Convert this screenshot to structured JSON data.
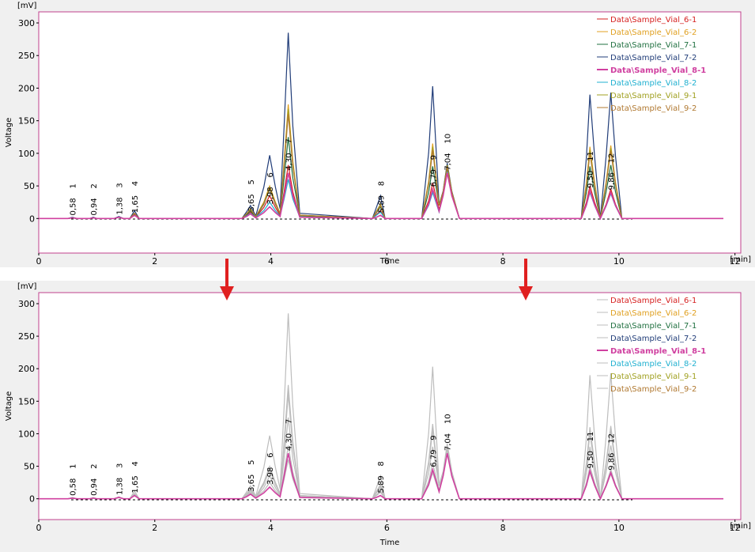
{
  "chart_data": [
    {
      "type": "line",
      "x_label": "Time",
      "x_unit": "[min]",
      "y_label": "Voltage",
      "y_unit": "[mV]",
      "xlim": [
        0,
        12.1
      ],
      "xticks": [
        0,
        2,
        4,
        6,
        8,
        10,
        12
      ],
      "ylim": [
        -53,
        317
      ],
      "yticks": [
        0,
        50,
        100,
        150,
        200,
        250,
        300
      ],
      "x": [
        0,
        0.5,
        0.58,
        0.66,
        0.88,
        0.94,
        1.0,
        1.3,
        1.38,
        1.46,
        1.57,
        1.65,
        1.73,
        3.5,
        3.58,
        3.65,
        3.74,
        3.88,
        3.98,
        4.08,
        4.16,
        4.23,
        4.3,
        4.38,
        4.5,
        5.75,
        5.82,
        5.89,
        5.97,
        6.6,
        6.72,
        6.79,
        6.9,
        6.97,
        7.04,
        7.12,
        7.25,
        9.35,
        9.44,
        9.5,
        9.58,
        9.68,
        9.78,
        9.86,
        9.94,
        10.05,
        11.8
      ],
      "series": [
        {
          "name": "Data\\Sample_Vial_6-1",
          "color": "#d62020",
          "values": [
            0,
            0,
            1,
            0,
            0,
            1,
            0,
            0,
            2,
            0,
            0,
            6,
            0,
            0,
            5,
            10,
            2,
            17,
            35,
            17,
            5,
            41,
            82,
            41,
            2,
            0,
            6,
            12,
            0,
            0,
            27,
            55,
            14,
            37,
            75,
            37,
            0,
            0,
            25,
            50,
            25,
            0,
            22,
            45,
            22,
            0,
            0
          ]
        },
        {
          "name": "Data\\Sample_Vial_6-2",
          "color": "#e0a020",
          "values": [
            0,
            0,
            1,
            0,
            0,
            1,
            0,
            0,
            2,
            0,
            0,
            8,
            0,
            0,
            7,
            14,
            3,
            25,
            50,
            25,
            8,
            88,
            175,
            88,
            5,
            0,
            10,
            20,
            0,
            0,
            57,
            115,
            20,
            40,
            80,
            40,
            0,
            0,
            55,
            110,
            55,
            0,
            56,
            112,
            56,
            0,
            0
          ]
        },
        {
          "name": "Data\\Sample_Vial_7-1",
          "color": "#207040",
          "values": [
            0,
            0,
            1,
            0,
            0,
            1,
            0,
            0,
            2,
            0,
            0,
            7,
            0,
            0,
            6,
            12,
            2,
            22,
            45,
            22,
            7,
            62,
            125,
            62,
            4,
            0,
            9,
            18,
            0,
            0,
            40,
            80,
            20,
            39,
            78,
            39,
            0,
            0,
            40,
            80,
            40,
            0,
            41,
            82,
            41,
            0,
            0
          ]
        },
        {
          "name": "Data\\Sample_Vial_7-2",
          "color": "#203c78",
          "values": [
            0,
            0,
            2,
            0,
            0,
            2,
            0,
            0,
            3,
            0,
            0,
            12,
            0,
            0,
            10,
            20,
            4,
            48,
            97,
            48,
            15,
            142,
            285,
            142,
            8,
            0,
            17,
            35,
            0,
            0,
            101,
            203,
            21,
            42,
            85,
            42,
            0,
            0,
            95,
            190,
            95,
            0,
            96,
            193,
            96,
            0,
            0
          ]
        },
        {
          "name": "Data\\Sample_Vial_8-1",
          "color": "#d040a0",
          "bold": true,
          "values": [
            0,
            0,
            1,
            0,
            0,
            1,
            0,
            0,
            2,
            0,
            0,
            5,
            0,
            0,
            3,
            7,
            1,
            9,
            18,
            9,
            3,
            35,
            70,
            35,
            2,
            0,
            2,
            5,
            0,
            0,
            22,
            45,
            11,
            35,
            70,
            35,
            0,
            0,
            21,
            43,
            21,
            0,
            20,
            40,
            20,
            0,
            0
          ]
        },
        {
          "name": "Data\\Sample_Vial_8-2",
          "color": "#20b0d0",
          "values": [
            0,
            0,
            1,
            0,
            0,
            1,
            0,
            0,
            2,
            0,
            0,
            5,
            0,
            0,
            4,
            8,
            2,
            12,
            25,
            12,
            4,
            30,
            60,
            30,
            2,
            0,
            5,
            10,
            0,
            0,
            20,
            40,
            10,
            36,
            72,
            36,
            0,
            0,
            20,
            40,
            20,
            0,
            19,
            38,
            19,
            0,
            0
          ]
        },
        {
          "name": "Data\\Sample_Vial_9-1",
          "color": "#a0a020",
          "values": [
            0,
            0,
            1,
            0,
            0,
            1,
            0,
            0,
            2,
            0,
            0,
            8,
            0,
            0,
            7,
            15,
            3,
            24,
            48,
            24,
            7,
            84,
            168,
            84,
            5,
            0,
            11,
            22,
            0,
            0,
            55,
            110,
            20,
            41,
            82,
            41,
            0,
            0,
            52,
            105,
            52,
            0,
            54,
            108,
            54,
            0,
            0
          ]
        },
        {
          "name": "Data\\Sample_Vial_9-2",
          "color": "#b07830",
          "values": [
            0,
            0,
            1,
            0,
            0,
            1,
            0,
            0,
            2,
            0,
            0,
            8,
            0,
            0,
            7,
            14,
            3,
            23,
            46,
            23,
            7,
            80,
            160,
            80,
            5,
            0,
            10,
            20,
            0,
            0,
            52,
            105,
            20,
            40,
            80,
            40,
            0,
            0,
            50,
            100,
            50,
            0,
            52,
            104,
            52,
            0,
            0
          ]
        }
      ],
      "peaks": [
        {
          "label": "1",
          "time": {
            "value": 0.58,
            "label": "0,58"
          }
        },
        {
          "label": "2",
          "time": {
            "value": 0.94,
            "label": "0,94"
          }
        },
        {
          "label": "3",
          "time": {
            "value": 1.38,
            "label": "1,38"
          }
        },
        {
          "label": "4",
          "time": {
            "value": 1.65,
            "label": "1,65"
          }
        },
        {
          "label": "5",
          "time": {
            "value": 3.65,
            "label": "3,65"
          }
        },
        {
          "label": "6",
          "time": {
            "value": 3.98,
            "label": "3,98"
          }
        },
        {
          "label": "7",
          "time": {
            "value": 4.3,
            "label": "4,30"
          }
        },
        {
          "label": "8",
          "time": {
            "value": 5.89,
            "label": "5,89"
          }
        },
        {
          "label": "9",
          "time": {
            "value": 6.79,
            "label": "6,79"
          }
        },
        {
          "label": "10",
          "time": {
            "value": 7.04,
            "label": "7,04"
          }
        },
        {
          "label": "11",
          "time": {
            "value": 9.5,
            "label": "9,50"
          }
        },
        {
          "label": "12",
          "time": {
            "value": 9.86,
            "label": "9,86"
          }
        }
      ]
    },
    {
      "type": "line",
      "x_label": "Time",
      "x_unit": "[min]",
      "y_label": "Voltage",
      "y_unit": "[mV]",
      "xlim": [
        0,
        12.1
      ],
      "xticks": [
        0,
        2,
        4,
        6,
        8,
        10,
        12
      ],
      "ylim": [
        -32,
        317
      ],
      "yticks": [
        0,
        50,
        100,
        150,
        200,
        250,
        300
      ],
      "x": [
        0,
        0.5,
        0.58,
        0.66,
        0.88,
        0.94,
        1.0,
        1.3,
        1.38,
        1.46,
        1.57,
        1.65,
        1.73,
        3.5,
        3.58,
        3.65,
        3.74,
        3.88,
        3.98,
        4.08,
        4.16,
        4.23,
        4.3,
        4.38,
        4.5,
        5.75,
        5.82,
        5.89,
        5.97,
        6.6,
        6.72,
        6.79,
        6.9,
        6.97,
        7.04,
        7.12,
        7.25,
        9.35,
        9.44,
        9.5,
        9.58,
        9.68,
        9.78,
        9.86,
        9.94,
        10.05,
        11.8
      ],
      "series": [
        {
          "name": "Data\\Sample_Vial_6-1",
          "color": "#bdbdbd",
          "label_color": "#d62020",
          "values": [
            0,
            0,
            1,
            0,
            0,
            1,
            0,
            0,
            2,
            0,
            0,
            6,
            0,
            0,
            5,
            10,
            2,
            17,
            35,
            17,
            5,
            41,
            82,
            41,
            2,
            0,
            6,
            12,
            0,
            0,
            27,
            55,
            14,
            37,
            75,
            37,
            0,
            0,
            25,
            50,
            25,
            0,
            22,
            45,
            22,
            0,
            0
          ]
        },
        {
          "name": "Data\\Sample_Vial_6-2",
          "color": "#bdbdbd",
          "label_color": "#e0a020",
          "values": [
            0,
            0,
            1,
            0,
            0,
            1,
            0,
            0,
            2,
            0,
            0,
            8,
            0,
            0,
            7,
            14,
            3,
            25,
            50,
            25,
            8,
            88,
            175,
            88,
            5,
            0,
            10,
            20,
            0,
            0,
            57,
            115,
            20,
            40,
            80,
            40,
            0,
            0,
            55,
            110,
            55,
            0,
            56,
            112,
            56,
            0,
            0
          ]
        },
        {
          "name": "Data\\Sample_Vial_7-1",
          "color": "#bdbdbd",
          "label_color": "#207040",
          "values": [
            0,
            0,
            1,
            0,
            0,
            1,
            0,
            0,
            2,
            0,
            0,
            7,
            0,
            0,
            6,
            12,
            2,
            22,
            45,
            22,
            7,
            62,
            125,
            62,
            4,
            0,
            9,
            18,
            0,
            0,
            40,
            80,
            20,
            39,
            78,
            39,
            0,
            0,
            40,
            80,
            40,
            0,
            41,
            82,
            41,
            0,
            0
          ]
        },
        {
          "name": "Data\\Sample_Vial_7-2",
          "color": "#bdbdbd",
          "label_color": "#203c78",
          "values": [
            0,
            0,
            2,
            0,
            0,
            2,
            0,
            0,
            3,
            0,
            0,
            12,
            0,
            0,
            10,
            20,
            4,
            48,
            97,
            48,
            15,
            142,
            285,
            142,
            8,
            0,
            17,
            35,
            0,
            0,
            101,
            203,
            21,
            42,
            85,
            42,
            0,
            0,
            95,
            190,
            95,
            0,
            96,
            193,
            96,
            0,
            0
          ]
        },
        {
          "name": "Data\\Sample_Vial_8-1",
          "color": "#d040a0",
          "bold": true,
          "values": [
            0,
            0,
            1,
            0,
            0,
            1,
            0,
            0,
            2,
            0,
            0,
            5,
            0,
            0,
            3,
            7,
            1,
            9,
            18,
            9,
            3,
            35,
            70,
            35,
            2,
            0,
            2,
            5,
            0,
            0,
            22,
            45,
            11,
            35,
            70,
            35,
            0,
            0,
            21,
            43,
            21,
            0,
            20,
            40,
            20,
            0,
            0
          ]
        },
        {
          "name": "Data\\Sample_Vial_8-2",
          "color": "#bdbdbd",
          "label_color": "#20b0d0",
          "values": [
            0,
            0,
            1,
            0,
            0,
            1,
            0,
            0,
            2,
            0,
            0,
            5,
            0,
            0,
            4,
            8,
            2,
            12,
            25,
            12,
            4,
            30,
            60,
            30,
            2,
            0,
            5,
            10,
            0,
            0,
            20,
            40,
            10,
            36,
            72,
            36,
            0,
            0,
            20,
            40,
            20,
            0,
            19,
            38,
            19,
            0,
            0
          ]
        },
        {
          "name": "Data\\Sample_Vial_9-1",
          "color": "#bdbdbd",
          "label_color": "#a0a020",
          "values": [
            0,
            0,
            1,
            0,
            0,
            1,
            0,
            0,
            2,
            0,
            0,
            8,
            0,
            0,
            7,
            15,
            3,
            24,
            48,
            24,
            7,
            84,
            168,
            84,
            5,
            0,
            11,
            22,
            0,
            0,
            55,
            110,
            20,
            41,
            82,
            41,
            0,
            0,
            52,
            105,
            52,
            0,
            54,
            108,
            54,
            0,
            0
          ]
        },
        {
          "name": "Data\\Sample_Vial_9-2",
          "color": "#bdbdbd",
          "label_color": "#b07830",
          "values": [
            0,
            0,
            1,
            0,
            0,
            1,
            0,
            0,
            2,
            0,
            0,
            8,
            0,
            0,
            7,
            14,
            3,
            23,
            46,
            23,
            7,
            80,
            160,
            80,
            5,
            0,
            10,
            20,
            0,
            0,
            52,
            105,
            20,
            40,
            80,
            40,
            0,
            0,
            50,
            100,
            50,
            0,
            52,
            104,
            52,
            0,
            0
          ]
        }
      ],
      "peaks": [
        {
          "label": "1",
          "time": {
            "value": 0.58,
            "label": "0,58"
          }
        },
        {
          "label": "2",
          "time": {
            "value": 0.94,
            "label": "0,94"
          }
        },
        {
          "label": "3",
          "time": {
            "value": 1.38,
            "label": "1,38"
          }
        },
        {
          "label": "4",
          "time": {
            "value": 1.65,
            "label": "1,65"
          }
        },
        {
          "label": "5",
          "time": {
            "value": 3.65,
            "label": "3,65"
          }
        },
        {
          "label": "6",
          "time": {
            "value": 3.98,
            "label": "3,98"
          }
        },
        {
          "label": "7",
          "time": {
            "value": 4.3,
            "label": "4,30"
          }
        },
        {
          "label": "8",
          "time": {
            "value": 5.89,
            "label": "5,89"
          }
        },
        {
          "label": "9",
          "time": {
            "value": 6.79,
            "label": "6,79"
          }
        },
        {
          "label": "10",
          "time": {
            "value": 7.04,
            "label": "7,04"
          }
        },
        {
          "label": "11",
          "time": {
            "value": 9.5,
            "label": "9,50"
          }
        },
        {
          "label": "12",
          "time": {
            "value": 9.86,
            "label": "9,86"
          }
        }
      ]
    }
  ]
}
